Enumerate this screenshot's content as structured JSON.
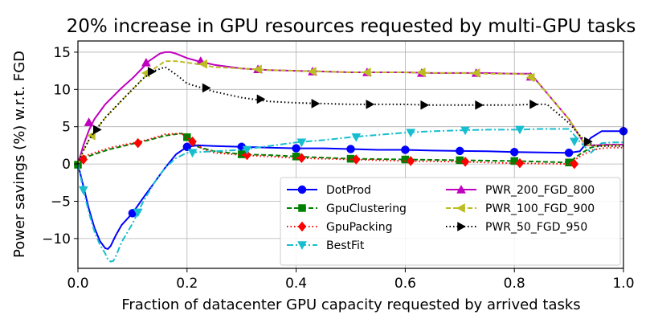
{
  "chart_data": {
    "type": "line",
    "title": "20% increase in GPU resources requested by multi-GPU tasks",
    "xlabel": "Fraction of datacenter GPU capacity requested by arrived tasks",
    "ylabel": "Power savings (%) w.r.t. FGD",
    "xlim": [
      0,
      1
    ],
    "ylim": [
      -14,
      16.5
    ],
    "xticks": [
      "0.0",
      "0.2",
      "0.4",
      "0.6",
      "0.8",
      "1.0"
    ],
    "xtick_values": [
      0,
      0.2,
      0.4,
      0.6,
      0.8,
      1.0
    ],
    "yticks": [
      "−10",
      "−5",
      "0",
      "5",
      "10",
      "15"
    ],
    "ytick_values": [
      -10,
      -5,
      0,
      5,
      10,
      15
    ],
    "grid": true,
    "legend_position": "lower-right",
    "series": [
      {
        "name": "DotProd",
        "color": "#0000ff",
        "dash": "solid",
        "marker": "circle",
        "x": [
          0.0,
          0.01,
          0.02,
          0.03,
          0.04,
          0.05,
          0.055,
          0.06,
          0.07,
          0.08,
          0.1,
          0.12,
          0.14,
          0.16,
          0.18,
          0.2,
          0.22,
          0.25,
          0.3,
          0.35,
          0.4,
          0.45,
          0.5,
          0.55,
          0.6,
          0.65,
          0.7,
          0.75,
          0.8,
          0.85,
          0.9,
          0.92,
          0.94,
          0.96,
          0.98,
          1.0
        ],
        "y": [
          0,
          -3,
          -6,
          -8.5,
          -10.3,
          -11.3,
          -11.4,
          -11.0,
          -9.5,
          -8.2,
          -6.6,
          -4.5,
          -2.5,
          -0.5,
          1.3,
          2.3,
          2.5,
          2.4,
          2.3,
          2.2,
          2.1,
          2.1,
          2.0,
          1.9,
          1.9,
          1.8,
          1.75,
          1.7,
          1.6,
          1.55,
          1.5,
          1.7,
          3.5,
          4.4,
          4.4,
          4.4
        ],
        "markers_x": [
          0.1,
          0.2,
          0.3,
          0.4,
          0.5,
          0.6,
          0.7,
          0.8,
          0.9,
          1.0
        ],
        "markers_y": [
          -6.6,
          2.3,
          2.3,
          2.1,
          2.0,
          1.9,
          1.75,
          1.6,
          1.5,
          4.4
        ]
      },
      {
        "name": "GpuClustering",
        "color": "#008000",
        "dash": "dashed",
        "marker": "square",
        "x": [
          0.0,
          0.01,
          0.03,
          0.06,
          0.1,
          0.13,
          0.16,
          0.19,
          0.2,
          0.22,
          0.25,
          0.3,
          0.35,
          0.4,
          0.5,
          0.6,
          0.7,
          0.8,
          0.9,
          0.92,
          0.94,
          0.96,
          0.98,
          1.0
        ],
        "y": [
          -0.1,
          0.8,
          1.3,
          2.0,
          2.7,
          3.2,
          3.8,
          4.1,
          3.6,
          2.3,
          1.7,
          1.3,
          1.2,
          1.0,
          0.7,
          0.6,
          0.5,
          0.4,
          0.2,
          1.3,
          2.2,
          2.5,
          2.6,
          2.6
        ],
        "markers_x": [
          0.0,
          0.2,
          0.3,
          0.4,
          0.5,
          0.6,
          0.7,
          0.8,
          0.9
        ],
        "markers_y": [
          -0.1,
          3.6,
          1.3,
          1.0,
          0.7,
          0.6,
          0.5,
          0.4,
          0.2
        ]
      },
      {
        "name": "GpuPacking",
        "color": "#ff0000",
        "dash": "dotted",
        "marker": "diamond",
        "x": [
          0.0,
          0.01,
          0.03,
          0.06,
          0.1,
          0.13,
          0.16,
          0.19,
          0.21,
          0.23,
          0.25,
          0.3,
          0.35,
          0.4,
          0.5,
          0.6,
          0.7,
          0.8,
          0.9,
          0.92,
          0.94,
          0.96,
          0.98,
          1.0
        ],
        "y": [
          0.6,
          1.0,
          1.5,
          2.2,
          2.8,
          3.3,
          4.0,
          4.1,
          3.0,
          2.0,
          1.5,
          1.2,
          1.0,
          0.8,
          0.6,
          0.4,
          0.3,
          0.1,
          0.0,
          1.0,
          1.8,
          2.1,
          2.2,
          2.2
        ],
        "markers_x": [
          0.01,
          0.11,
          0.21,
          0.31,
          0.41,
          0.51,
          0.61,
          0.71,
          0.81,
          0.91
        ],
        "markers_y": [
          0.6,
          2.8,
          3.0,
          1.2,
          0.8,
          0.6,
          0.4,
          0.3,
          0.1,
          0.0
        ]
      },
      {
        "name": "BestFit",
        "color": "#17becf",
        "dash": "dashdot",
        "marker": "triangle-down",
        "x": [
          0.0,
          0.01,
          0.02,
          0.03,
          0.04,
          0.05,
          0.055,
          0.06,
          0.065,
          0.07,
          0.08,
          0.1,
          0.12,
          0.14,
          0.16,
          0.18,
          0.2,
          0.22,
          0.25,
          0.3,
          0.35,
          0.4,
          0.45,
          0.5,
          0.55,
          0.6,
          0.65,
          0.7,
          0.75,
          0.8,
          0.85,
          0.9,
          0.92,
          0.94,
          0.96,
          0.98,
          1.0
        ],
        "y": [
          0,
          -3.5,
          -6.5,
          -9.0,
          -10.8,
          -12.0,
          -12.8,
          -13.1,
          -13.0,
          -12.3,
          -10.5,
          -8.0,
          -5.0,
          -2.5,
          -0.5,
          0.8,
          1.5,
          1.6,
          1.7,
          1.9,
          2.4,
          2.9,
          3.2,
          3.6,
          3.9,
          4.2,
          4.4,
          4.5,
          4.6,
          4.6,
          4.7,
          4.7,
          3.0,
          1.5,
          2.8,
          2.9,
          2.9
        ],
        "markers_x": [
          0.01,
          0.11,
          0.21,
          0.31,
          0.41,
          0.51,
          0.61,
          0.71,
          0.81,
          0.91
        ],
        "markers_y": [
          -3.5,
          -6.5,
          1.5,
          1.9,
          2.9,
          3.6,
          4.2,
          4.5,
          4.6,
          3.0
        ]
      },
      {
        "name": "PWR_200_FGD_800",
        "color": "#bf00bf",
        "dash": "solid",
        "marker": "triangle-up",
        "x": [
          0.0,
          0.01,
          0.02,
          0.03,
          0.05,
          0.08,
          0.1,
          0.12,
          0.13,
          0.15,
          0.16,
          0.17,
          0.18,
          0.2,
          0.22,
          0.25,
          0.3,
          0.35,
          0.4,
          0.45,
          0.5,
          0.55,
          0.6,
          0.65,
          0.7,
          0.75,
          0.8,
          0.83,
          0.86,
          0.9,
          0.93,
          0.95,
          0.97,
          1.0
        ],
        "y": [
          0,
          2.5,
          4.5,
          6.0,
          8.0,
          10.2,
          11.5,
          13.0,
          13.8,
          14.8,
          15.0,
          15.0,
          14.8,
          14.2,
          13.8,
          13.3,
          12.8,
          12.6,
          12.5,
          12.4,
          12.3,
          12.3,
          12.3,
          12.2,
          12.2,
          12.2,
          12.1,
          12.1,
          9.5,
          6.0,
          2.5,
          2.5,
          2.6,
          2.6
        ],
        "markers_x": [
          0.02,
          0.125,
          0.225,
          0.33,
          0.43,
          0.53,
          0.63,
          0.73,
          0.83
        ],
        "markers_y": [
          5.6,
          13.6,
          13.8,
          12.7,
          12.4,
          12.3,
          12.2,
          12.2,
          11.7
        ]
      },
      {
        "name": "PWR_100_FGD_900",
        "color": "#bcbd22",
        "dash": "dashed",
        "marker": "triangle-left",
        "x": [
          0.0,
          0.01,
          0.02,
          0.03,
          0.05,
          0.08,
          0.1,
          0.12,
          0.13,
          0.15,
          0.16,
          0.18,
          0.2,
          0.22,
          0.25,
          0.3,
          0.35,
          0.4,
          0.45,
          0.5,
          0.55,
          0.6,
          0.65,
          0.7,
          0.75,
          0.8,
          0.83,
          0.86,
          0.9,
          0.93,
          0.95,
          0.97,
          1.0
        ],
        "y": [
          0,
          1.8,
          3.2,
          4.3,
          6.2,
          8.5,
          10.0,
          11.5,
          12.3,
          13.3,
          13.8,
          13.8,
          13.6,
          13.4,
          13.0,
          12.8,
          12.6,
          12.5,
          12.4,
          12.3,
          12.3,
          12.3,
          12.2,
          12.2,
          12.1,
          12.1,
          12.0,
          9.5,
          6.0,
          2.6,
          2.4,
          2.5,
          2.5
        ],
        "markers_x": [
          0.025,
          0.125,
          0.23,
          0.33,
          0.43,
          0.53,
          0.63,
          0.73,
          0.83
        ],
        "markers_y": [
          3.8,
          12.2,
          13.4,
          12.7,
          12.4,
          12.3,
          12.3,
          12.2,
          11.6
        ]
      },
      {
        "name": "PWR_50_FGD_950",
        "color": "#000000",
        "dash": "dotted",
        "marker": "triangle-right",
        "x": [
          0.0,
          0.01,
          0.02,
          0.03,
          0.05,
          0.08,
          0.1,
          0.12,
          0.14,
          0.16,
          0.18,
          0.2,
          0.25,
          0.3,
          0.35,
          0.4,
          0.45,
          0.5,
          0.55,
          0.6,
          0.65,
          0.7,
          0.75,
          0.8,
          0.83,
          0.86,
          0.9,
          0.93,
          0.95,
          0.97,
          1.0
        ],
        "y": [
          0,
          1.8,
          3.2,
          4.3,
          6.2,
          8.5,
          10.0,
          11.5,
          12.5,
          13.0,
          12.0,
          10.8,
          9.7,
          8.9,
          8.4,
          8.2,
          8.1,
          8.0,
          8.0,
          8.0,
          7.9,
          7.9,
          7.9,
          7.9,
          8.0,
          8.0,
          5.5,
          3.0,
          2.4,
          2.4,
          2.4
        ],
        "markers_x": [
          0.035,
          0.135,
          0.235,
          0.335,
          0.435,
          0.535,
          0.635,
          0.735,
          0.835,
          0.935
        ],
        "markers_y": [
          4.6,
          12.4,
          10.2,
          8.7,
          8.1,
          8.0,
          7.9,
          7.9,
          8.0,
          3.0
        ]
      }
    ]
  }
}
